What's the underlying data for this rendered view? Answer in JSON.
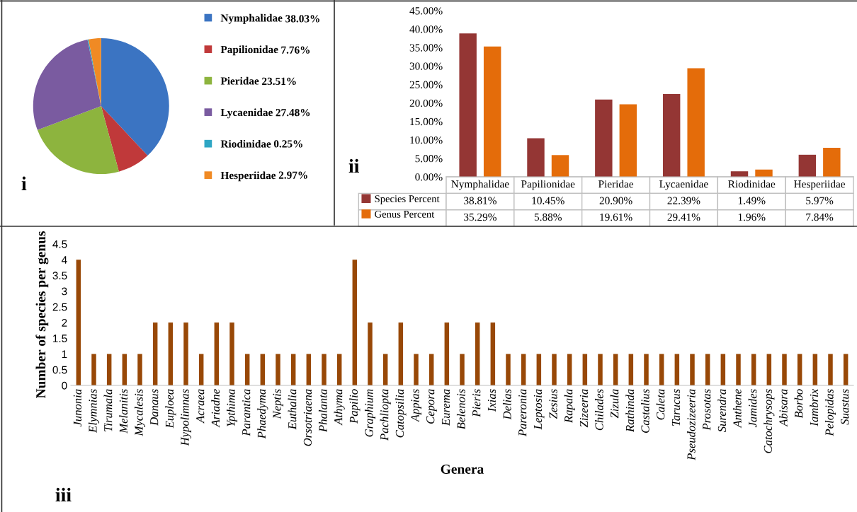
{
  "chart_data": [
    {
      "type": "pie",
      "categories": [
        "Nymphalidae",
        "Papilionidae",
        "Pieridae",
        "Lycaenidae",
        "Riodinidae",
        "Hesperiidae"
      ],
      "values": [
        38.03,
        7.76,
        23.51,
        27.48,
        0.25,
        2.97
      ],
      "value_labels": [
        "38.03%",
        "7.76%",
        "23.51%",
        "27.48%",
        "0.25%",
        "2.97%"
      ],
      "colors": [
        "#3b74c2",
        "#c0393a",
        "#8db43e",
        "#7a5ba0",
        "#2ea6c4",
        "#f08a24"
      ],
      "legend": "right",
      "annotations": [
        "i"
      ]
    },
    {
      "type": "bar",
      "categories": [
        "Nymphalidae",
        "Papilionidae",
        "Pieridae",
        "Lycaenidae",
        "Riodinidae",
        "Hesperiidae"
      ],
      "series": [
        {
          "name": "Species Percent",
          "color": "#943634",
          "values": [
            38.81,
            10.45,
            20.9,
            22.39,
            1.49,
            5.97
          ],
          "value_labels": [
            "38.81%",
            "10.45%",
            "20.90%",
            "22.39%",
            "1.49%",
            "5.97%"
          ]
        },
        {
          "name": "Genus Percent",
          "color": "#e46c0a",
          "values": [
            35.29,
            5.88,
            19.61,
            29.41,
            1.96,
            7.84
          ],
          "value_labels": [
            "35.29%",
            "5.88%",
            "19.61%",
            "29.41%",
            "1.96%",
            "7.84%"
          ]
        }
      ],
      "ylim": [
        0,
        45
      ],
      "yticks": [
        {
          "value": 0,
          "label": "0.00%"
        },
        {
          "value": 5,
          "label": "5.00%"
        },
        {
          "value": 10,
          "label": "10.00%"
        },
        {
          "value": 15,
          "label": "15.00%"
        },
        {
          "value": 20,
          "label": "20.00%"
        },
        {
          "value": 25,
          "label": "25.00%"
        },
        {
          "value": 30,
          "label": "30.00%"
        },
        {
          "value": 35,
          "label": "35.00%"
        },
        {
          "value": 40,
          "label": "40.00%"
        },
        {
          "value": 45,
          "label": "45.00%"
        }
      ],
      "legend": "bottom left",
      "tick_labels": "y",
      "annotations": [
        "ii"
      ]
    },
    {
      "type": "bar",
      "xlabel": "Genera",
      "ylabel": "Number of species per genus",
      "color": "#984807",
      "categories": [
        "Junonia",
        "Elymnias",
        "Tirumala",
        "Melanitis",
        "Mycalesis",
        "Danaus",
        "Euploea",
        "Hypolimnas",
        "Acraea",
        "Ariadne",
        "Ypthima",
        "Parantica",
        "Phaedyma",
        "Neptis",
        "Euthalia",
        "Orsotriaena",
        "Phalanta",
        "Athyma",
        "Papilio",
        "Graphium",
        "Pachliopta",
        "Catopsilia",
        "Appias",
        "Cepora",
        "Eurema",
        "Belenois",
        "Pieris",
        "Ixias",
        "Delias",
        "Pareronia",
        "Leptosia",
        "Zesius",
        "Rapala",
        "Zizeeria",
        "Chilades",
        "Zizula",
        "Rathinda",
        "Castalius",
        "Caleta",
        "Tarucus",
        "Pseudozizeeria",
        "Prosotas",
        "Surendra",
        "Anthene",
        "Jamides",
        "Catochrysops",
        "Abisara",
        "Borbo",
        "Iambrix",
        "Pelopidas",
        "Suastus"
      ],
      "values": [
        4,
        1,
        1,
        1,
        1,
        2,
        2,
        2,
        1,
        2,
        2,
        1,
        1,
        1,
        1,
        1,
        1,
        1,
        4,
        2,
        1,
        2,
        1,
        1,
        2,
        1,
        2,
        2,
        1,
        1,
        1,
        1,
        1,
        1,
        1,
        1,
        1,
        1,
        1,
        1,
        1,
        1,
        1,
        1,
        1,
        1,
        1,
        1,
        1,
        1,
        1
      ],
      "ylim": [
        0,
        4.5
      ],
      "yticks": [
        0,
        0.5,
        1,
        1.5,
        2,
        2.5,
        3,
        3.5,
        4,
        4.5
      ],
      "annotations": [
        "iii"
      ]
    }
  ]
}
